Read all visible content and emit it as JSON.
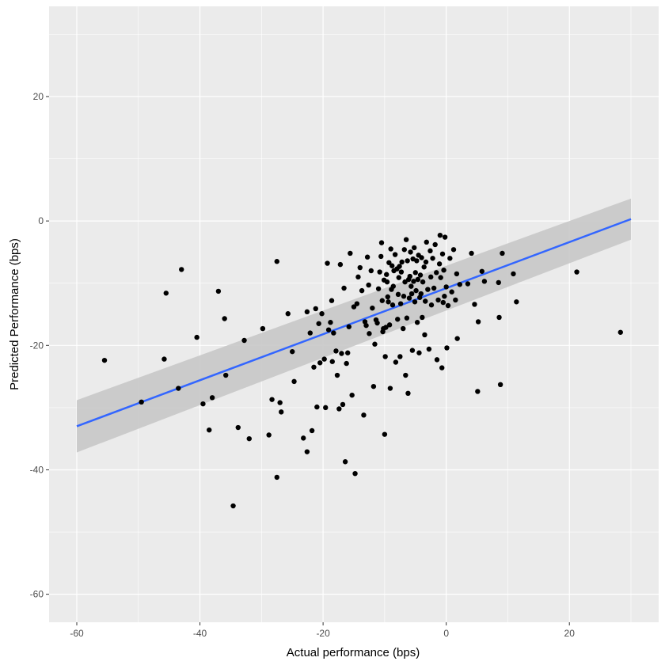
{
  "chart_data": {
    "type": "scatter",
    "xlabel": "Actual performance (bps)",
    "ylabel": "Predicted Performance (bps)",
    "xlim": [
      -64.5,
      34.5
    ],
    "ylim": [
      -64.5,
      34.5
    ],
    "x_ticks": [
      -60,
      -40,
      -20,
      0,
      20
    ],
    "y_ticks": [
      -60,
      -40,
      -20,
      0,
      20
    ],
    "grid": true,
    "colors": {
      "panel": "#ebebeb",
      "grid": "#ffffff",
      "points": "#000000",
      "fit_line": "#3366ff",
      "ribbon": "#c8c8c8",
      "tick_text": "#4d4d4d"
    },
    "series": [
      {
        "points": [
          [
            -55.5,
            -22.4
          ],
          [
            -49.5,
            -29.1
          ],
          [
            -45.8,
            -22.2
          ],
          [
            -45.5,
            -11.6
          ],
          [
            -43.5,
            -26.9
          ],
          [
            -43.0,
            -7.8
          ],
          [
            -40.5,
            -18.7
          ],
          [
            -39.5,
            -29.4
          ],
          [
            -38.5,
            -33.6
          ],
          [
            -38.0,
            -28.4
          ],
          [
            -37.0,
            -11.3
          ],
          [
            -36.0,
            -15.7
          ],
          [
            -35.8,
            -24.8
          ],
          [
            -34.6,
            -45.8
          ],
          [
            -33.8,
            -33.2
          ],
          [
            -32.8,
            -19.2
          ],
          [
            -32.0,
            -35.0
          ],
          [
            -29.8,
            -17.3
          ],
          [
            -28.8,
            -34.4
          ],
          [
            -28.3,
            -28.7
          ],
          [
            -27.5,
            -6.5
          ],
          [
            -27.5,
            -41.2
          ],
          [
            -27.0,
            -29.2
          ],
          [
            -26.8,
            -30.7
          ],
          [
            -25.7,
            -14.9
          ],
          [
            -25.0,
            -21.0
          ],
          [
            -24.7,
            -25.8
          ],
          [
            -23.2,
            -34.9
          ],
          [
            -22.6,
            -37.1
          ],
          [
            -22.6,
            -14.6
          ],
          [
            -22.1,
            -18.0
          ],
          [
            -21.8,
            -33.7
          ],
          [
            -21.5,
            -23.5
          ],
          [
            -21.2,
            -14.1
          ],
          [
            -21.0,
            -29.9
          ],
          [
            -20.7,
            -16.5
          ],
          [
            -20.5,
            -22.8
          ],
          [
            -20.2,
            -14.9
          ],
          [
            -19.8,
            -22.2
          ],
          [
            -19.6,
            -30.0
          ],
          [
            -19.3,
            -6.8
          ],
          [
            -19.1,
            -17.5
          ],
          [
            -18.8,
            -16.3
          ],
          [
            -18.6,
            -12.8
          ],
          [
            -18.5,
            -22.6
          ],
          [
            -18.3,
            -18.0
          ],
          [
            -17.9,
            -20.9
          ],
          [
            -17.7,
            -24.8
          ],
          [
            -17.4,
            -30.2
          ],
          [
            -17.2,
            -7.0
          ],
          [
            -17.0,
            -21.3
          ],
          [
            -16.8,
            -29.5
          ],
          [
            -16.6,
            -10.8
          ],
          [
            -16.4,
            -38.7
          ],
          [
            -16.2,
            -22.9
          ],
          [
            -16.0,
            -21.2
          ],
          [
            -15.8,
            -17.0
          ],
          [
            -15.6,
            -5.2
          ],
          [
            -15.3,
            -28.0
          ],
          [
            -15.0,
            -13.8
          ],
          [
            -14.8,
            -40.6
          ],
          [
            -14.5,
            -13.3
          ],
          [
            -14.3,
            -9.0
          ],
          [
            -14.0,
            -7.5
          ],
          [
            -13.7,
            -11.2
          ],
          [
            -13.4,
            -31.2
          ],
          [
            -13.2,
            -16.2
          ],
          [
            -13.0,
            -16.8
          ],
          [
            -12.8,
            -5.8
          ],
          [
            -12.6,
            -10.3
          ],
          [
            -12.5,
            -18.1
          ],
          [
            -12.2,
            -8.0
          ],
          [
            -12.0,
            -14.0
          ],
          [
            -11.8,
            -26.6
          ],
          [
            -11.6,
            -19.8
          ],
          [
            -11.4,
            -15.9
          ],
          [
            -11.2,
            -16.4
          ],
          [
            -11.0,
            -10.9
          ],
          [
            -10.8,
            -8.2
          ],
          [
            -10.6,
            -5.7
          ],
          [
            -10.5,
            -3.5
          ],
          [
            -10.4,
            -12.8
          ],
          [
            -10.3,
            -17.8
          ],
          [
            -10.2,
            -17.3
          ],
          [
            -10.1,
            -9.5
          ],
          [
            -10.0,
            -34.3
          ],
          [
            -9.9,
            -21.8
          ],
          [
            -9.8,
            -17.1
          ],
          [
            -9.7,
            -8.6
          ],
          [
            -9.6,
            -9.8
          ],
          [
            -9.5,
            -12.2
          ],
          [
            -9.4,
            -13.0
          ],
          [
            -9.3,
            -6.7
          ],
          [
            -9.2,
            -16.7
          ],
          [
            -9.1,
            -26.9
          ],
          [
            -9.0,
            -4.5
          ],
          [
            -8.9,
            -11.0
          ],
          [
            -8.8,
            -7.2
          ],
          [
            -8.7,
            -13.5
          ],
          [
            -8.6,
            -10.5
          ],
          [
            -8.5,
            -8.0
          ],
          [
            -8.3,
            -5.4
          ],
          [
            -8.2,
            -22.7
          ],
          [
            -8.0,
            -7.7
          ],
          [
            -7.9,
            -15.8
          ],
          [
            -7.8,
            -11.8
          ],
          [
            -7.7,
            -9.1
          ],
          [
            -7.6,
            -7.3
          ],
          [
            -7.5,
            -21.8
          ],
          [
            -7.4,
            -13.3
          ],
          [
            -7.3,
            -8.2
          ],
          [
            -7.2,
            -6.6
          ],
          [
            -7.0,
            -17.3
          ],
          [
            -6.9,
            -12.1
          ],
          [
            -6.8,
            -4.6
          ],
          [
            -6.7,
            -9.8
          ],
          [
            -6.6,
            -24.8
          ],
          [
            -6.5,
            -3.0
          ],
          [
            -6.4,
            -15.6
          ],
          [
            -6.3,
            -6.4
          ],
          [
            -6.2,
            -27.7
          ],
          [
            -6.1,
            -9.4
          ],
          [
            -6.0,
            -12.4
          ],
          [
            -5.9,
            -8.9
          ],
          [
            -5.8,
            -5.0
          ],
          [
            -5.7,
            -10.5
          ],
          [
            -5.6,
            -11.7
          ],
          [
            -5.5,
            -20.8
          ],
          [
            -5.4,
            -6.1
          ],
          [
            -5.3,
            -9.7
          ],
          [
            -5.2,
            -4.3
          ],
          [
            -5.1,
            -13.0
          ],
          [
            -5.0,
            -8.3
          ],
          [
            -4.9,
            -11.2
          ],
          [
            -4.8,
            -6.4
          ],
          [
            -4.7,
            -16.3
          ],
          [
            -4.6,
            -9.4
          ],
          [
            -4.5,
            -5.5
          ],
          [
            -4.4,
            -21.2
          ],
          [
            -4.3,
            -12.3
          ],
          [
            -4.2,
            -8.7
          ],
          [
            -4.1,
            -11.7
          ],
          [
            -4.0,
            -5.9
          ],
          [
            -3.9,
            -15.5
          ],
          [
            -3.8,
            -9.8
          ],
          [
            -3.6,
            -7.4
          ],
          [
            -3.5,
            -18.3
          ],
          [
            -3.4,
            -12.9
          ],
          [
            -3.3,
            -6.6
          ],
          [
            -3.2,
            -3.4
          ],
          [
            -3.0,
            -11.0
          ],
          [
            -2.8,
            -20.6
          ],
          [
            -2.6,
            -4.8
          ],
          [
            -2.5,
            -9.0
          ],
          [
            -2.4,
            -13.5
          ],
          [
            -2.2,
            -6.0
          ],
          [
            -2.0,
            -10.8
          ],
          [
            -1.8,
            -3.8
          ],
          [
            -1.6,
            -8.3
          ],
          [
            -1.5,
            -22.3
          ],
          [
            -1.3,
            -12.7
          ],
          [
            -1.1,
            -6.9
          ],
          [
            -1.0,
            -2.3
          ],
          [
            -0.9,
            -9.1
          ],
          [
            -0.7,
            -23.6
          ],
          [
            -0.6,
            -5.3
          ],
          [
            -0.5,
            -13.1
          ],
          [
            -0.4,
            -7.9
          ],
          [
            -0.3,
            -12.1
          ],
          [
            -0.2,
            -2.6
          ],
          [
            0.0,
            -10.6
          ],
          [
            0.1,
            -20.4
          ],
          [
            0.3,
            -13.6
          ],
          [
            0.6,
            -6.0
          ],
          [
            0.9,
            -11.4
          ],
          [
            1.2,
            -4.6
          ],
          [
            1.5,
            -12.7
          ],
          [
            1.7,
            -8.5
          ],
          [
            1.8,
            -18.9
          ],
          [
            2.2,
            -10.2
          ],
          [
            3.5,
            -10.1
          ],
          [
            4.1,
            -5.2
          ],
          [
            4.6,
            -13.4
          ],
          [
            5.1,
            -27.4
          ],
          [
            5.2,
            -16.2
          ],
          [
            5.8,
            -8.1
          ],
          [
            6.2,
            -9.7
          ],
          [
            8.5,
            -9.9
          ],
          [
            8.6,
            -15.5
          ],
          [
            8.8,
            -26.3
          ],
          [
            9.1,
            -5.2
          ],
          [
            10.9,
            -8.5
          ],
          [
            11.4,
            -13.0
          ],
          [
            21.2,
            -8.2
          ],
          [
            28.3,
            -17.9
          ]
        ]
      }
    ],
    "fit": {
      "method": "lm",
      "x_range": [
        -60,
        30
      ],
      "y_at_x_range": [
        -33.0,
        0.3
      ],
      "ci_upper": [
        -28.8,
        3.6
      ],
      "ci_lower": [
        -37.2,
        -3.0
      ]
    }
  }
}
